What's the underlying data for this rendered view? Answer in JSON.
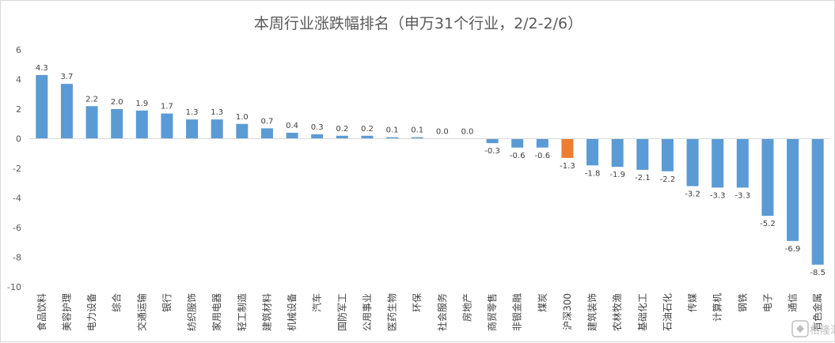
{
  "chart_data": {
    "type": "bar",
    "title": "本周行业涨跌幅排名（申万31个行业，2/2-2/6）",
    "xlabel": "",
    "ylabel": "",
    "ylim": [
      -10,
      6
    ],
    "yticks": [
      6,
      4,
      2,
      0,
      -2,
      -4,
      -6,
      -8,
      -10
    ],
    "grid": false,
    "legend": "none",
    "categories": [
      "食品饮料",
      "美容护理",
      "电力设备",
      "综合",
      "交通运输",
      "银行",
      "纺织服饰",
      "家用电器",
      "轻工制造",
      "建筑材料",
      "机械设备",
      "汽车",
      "国防军工",
      "公用事业",
      "医药生物",
      "环保",
      "社会服务",
      "房地产",
      "商贸零售",
      "非银金融",
      "煤炭",
      "沪深300",
      "建筑装饰",
      "农林牧渔",
      "基础化工",
      "石油石化",
      "传媒",
      "计算机",
      "钢铁",
      "电子",
      "通信",
      "有色金属"
    ],
    "values": [
      4.3,
      3.7,
      2.2,
      2.0,
      1.9,
      1.7,
      1.3,
      1.3,
      1.0,
      0.7,
      0.4,
      0.3,
      0.2,
      0.2,
      0.1,
      0.1,
      0.0,
      0.0,
      -0.3,
      -0.6,
      -0.6,
      -1.3,
      -1.8,
      -1.9,
      -2.1,
      -2.2,
      -3.2,
      -3.3,
      -3.3,
      -5.2,
      -6.9,
      -8.5
    ],
    "data_labels": [
      "4.3",
      "3.7",
      "2.2",
      "2.0",
      "1.9",
      "1.7",
      "1.3",
      "1.3",
      "1.0",
      "0.7",
      "0.4",
      "0.3",
      "0.2",
      "0.2",
      "0.1",
      "0.1",
      "0.0",
      "0.0",
      "-0.3",
      "-0.6",
      "-0.6",
      "-1.3",
      "-1.8",
      "-1.9",
      "-2.1",
      "-2.2",
      "-3.2",
      "-3.3",
      "-3.3",
      "-5.2",
      "-6.9",
      "-8.5"
    ],
    "colors": {
      "bar": "#5b9bd5",
      "highlight": "#ed7d31",
      "axis": "#d9d9d9",
      "text": "#595959"
    },
    "highlight_category": "沪深300"
  },
  "watermark": "格隆汇"
}
